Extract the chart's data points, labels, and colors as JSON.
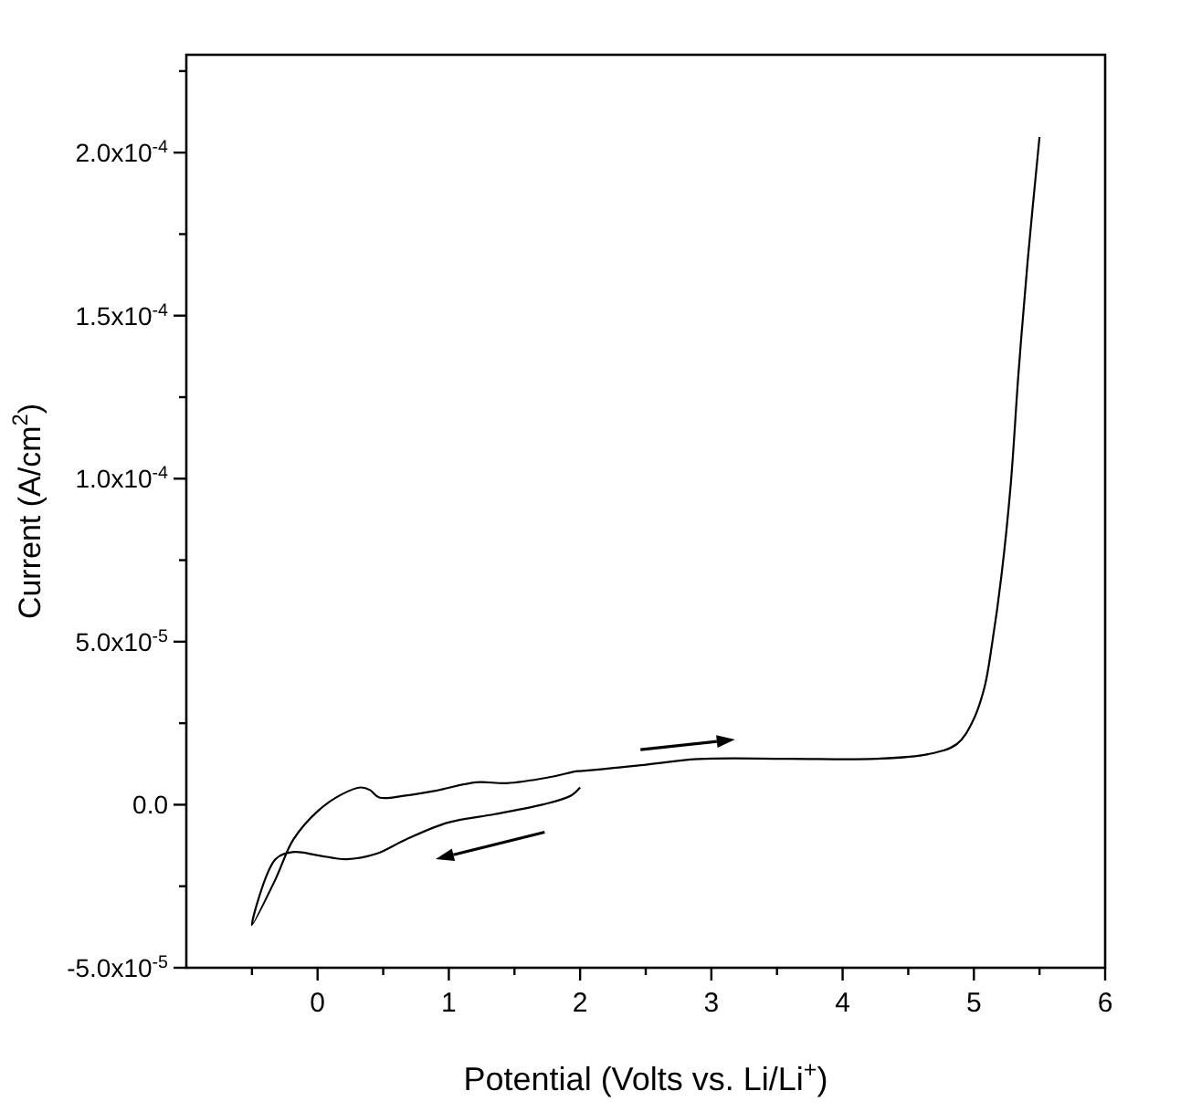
{
  "chart_data": {
    "type": "line",
    "xlabel": "Potential (Volts vs. Li/Li$^{+}$)",
    "ylabel": "Current (A/cm$^{2}$)",
    "xlim": [
      -1,
      6
    ],
    "ylim": [
      -5e-05,
      0.00023
    ],
    "xticks": [
      {
        "value": -0.5,
        "label": null
      },
      0,
      {
        "value": 0.5,
        "label": null
      },
      1,
      {
        "value": 1.5,
        "label": null
      },
      2,
      {
        "value": 2.5,
        "label": null
      },
      3,
      {
        "value": 3.5,
        "label": null
      },
      4,
      {
        "value": 4.5,
        "label": null
      },
      5,
      {
        "value": 5.5,
        "label": null
      },
      6
    ],
    "yticks": [
      {
        "value": -5e-05,
        "label": "-5.0x10$^{-5}$"
      },
      {
        "value": -2.5e-05,
        "label": null
      },
      {
        "value": 0,
        "label": "0.0"
      },
      {
        "value": 2.5e-05,
        "label": null
      },
      {
        "value": 5e-05,
        "label": "5.0x10$^{-5}$"
      },
      {
        "value": 7.5e-05,
        "label": null
      },
      {
        "value": 0.0001,
        "label": "1.0x10$^{-4}$"
      },
      {
        "value": 0.000125,
        "label": null
      },
      {
        "value": 0.00015,
        "label": "1.5x10$^{-4}$"
      },
      {
        "value": 0.000175,
        "label": null
      },
      {
        "value": 0.0002,
        "label": "2.0x10$^{-4}$"
      },
      {
        "value": 0.000225,
        "label": null
      }
    ],
    "grid": false,
    "marker": "none",
    "line_style": "solid",
    "series": [
      {
        "color": "#000000",
        "x": [
          2.0,
          1.93,
          1.71,
          1.35,
          0.99,
          0.67,
          0.45,
          0.22,
          0,
          -0.18,
          -0.32,
          -0.5,
          -0.32,
          -0.185,
          0,
          0.18,
          0.33,
          0.4,
          0.47,
          0.67,
          0.9,
          1.21,
          1.44,
          1.75,
          1.98,
          2.0,
          2.46,
          2.9,
          3.58,
          4.25,
          4.65,
          4.87,
          4.99,
          5.08,
          5.14,
          5.21,
          5.28,
          5.34,
          5.41,
          5.5
        ],
        "values": [
          5.3e-06,
          2.8e-06,
          0,
          -2.9e-06,
          -5.5e-06,
          -1.07e-05,
          -1.5e-05,
          -1.67e-05,
          -1.55e-05,
          -1.45e-05,
          -1.67e-05,
          -3.69e-05,
          -2.28e-05,
          -1.07e-05,
          -2e-06,
          3.1e-06,
          5.3e-06,
          4.5e-06,
          2.2e-06,
          2.8e-06,
          4.3e-06,
          6.9e-06,
          6.6e-06,
          8.3e-06,
          1.03e-05,
          1.03e-05,
          1.21e-05,
          1.4e-05,
          1.41e-05,
          1.41e-05,
          1.55e-05,
          1.86e-05,
          2.55e-05,
          3.59e-05,
          4.97e-05,
          7.03e-05,
          9.79e-05,
          0.0001324,
          0.0001669,
          0.0002048
        ]
      }
    ]
  }
}
